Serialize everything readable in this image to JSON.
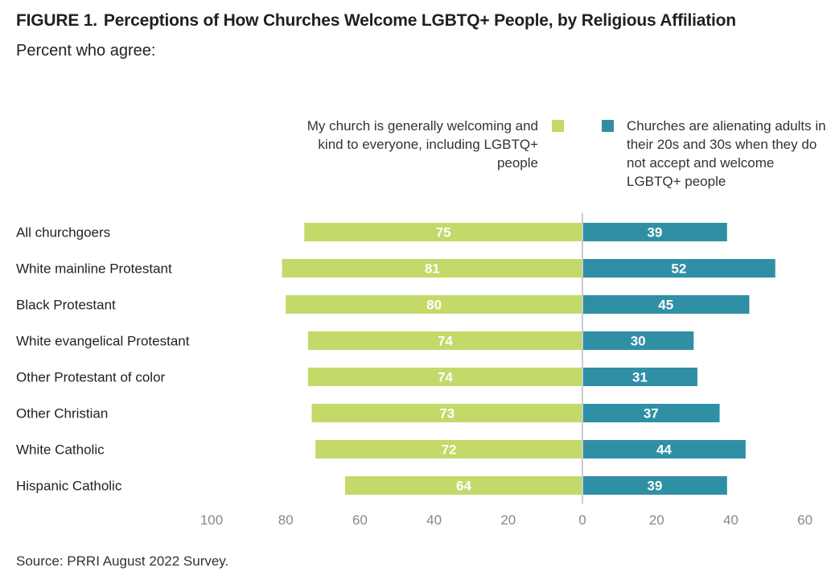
{
  "figure": {
    "number": "FIGURE 1.",
    "title": "Perceptions of How Churches Welcome LGBTQ+ People, by Religious Affiliation",
    "subtitle": "Percent who agree:"
  },
  "source": "Source: PRRI August 2022 Survey.",
  "colors": {
    "left_series": "#c3d969",
    "right_series": "#2f8fa5",
    "axis_line": "#cccccc",
    "tick_text": "#888888"
  },
  "chart_data": {
    "type": "bar",
    "orientation": "horizontal-diverging",
    "title": "Perceptions of How Churches Welcome LGBTQ+ People, by Religious Affiliation",
    "subtitle": "Percent who agree:",
    "categories": [
      "All churchgoers",
      "White mainline Protestant",
      "Black Protestant",
      "White evangelical Protestant",
      "Other Protestant of color",
      "Other Christian",
      "White Catholic",
      "Hispanic Catholic"
    ],
    "series": [
      {
        "name": "My church is generally welcoming and kind to everyone, including LGBTQ+ people",
        "direction": "left",
        "values": [
          75,
          81,
          80,
          74,
          74,
          73,
          72,
          64
        ]
      },
      {
        "name": "Churches are alienating adults in their 20s and 30s when they do not accept and welcome LGBTQ+ people",
        "direction": "right",
        "values": [
          39,
          52,
          45,
          30,
          31,
          37,
          44,
          39
        ]
      }
    ],
    "axis": {
      "left_range": [
        0,
        100
      ],
      "right_range": [
        0,
        60
      ],
      "tick_labels": [
        "100",
        "80",
        "60",
        "40",
        "20",
        "0",
        "20",
        "40",
        "60"
      ],
      "gridlines": false
    },
    "legend_position": "top"
  }
}
